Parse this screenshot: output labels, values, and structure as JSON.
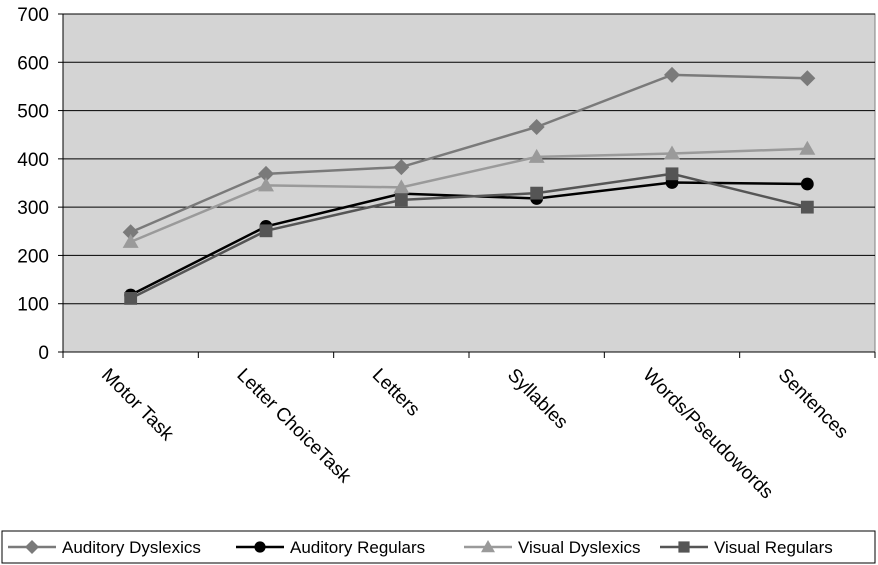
{
  "chart_data": {
    "type": "line",
    "categories": [
      "Motor Task",
      "Letter ChoiceTask",
      "Letters",
      "Syllables",
      "Words/Pseudowords",
      "Sentences"
    ],
    "ylim": [
      0,
      700
    ],
    "yticks": [
      0,
      100,
      200,
      300,
      400,
      500,
      600,
      700
    ],
    "grid": true,
    "legend_position": "bottom",
    "plot_background": "#d4d4d4",
    "series": [
      {
        "name": "Auditory Dyslexics",
        "marker": "diamond",
        "color": "#7a7a7a",
        "values": [
          248,
          369,
          383,
          466,
          574,
          567
        ]
      },
      {
        "name": "Auditory Regulars",
        "marker": "circle",
        "color": "#000000",
        "values": [
          118,
          260,
          328,
          318,
          351,
          348
        ]
      },
      {
        "name": "Visual Dyslexics",
        "marker": "triangle",
        "color": "#9a9a9a",
        "values": [
          228,
          345,
          341,
          404,
          411,
          421
        ]
      },
      {
        "name": "Visual Regulars",
        "marker": "square",
        "color": "#555555",
        "values": [
          111,
          251,
          315,
          329,
          369,
          300
        ]
      }
    ]
  }
}
